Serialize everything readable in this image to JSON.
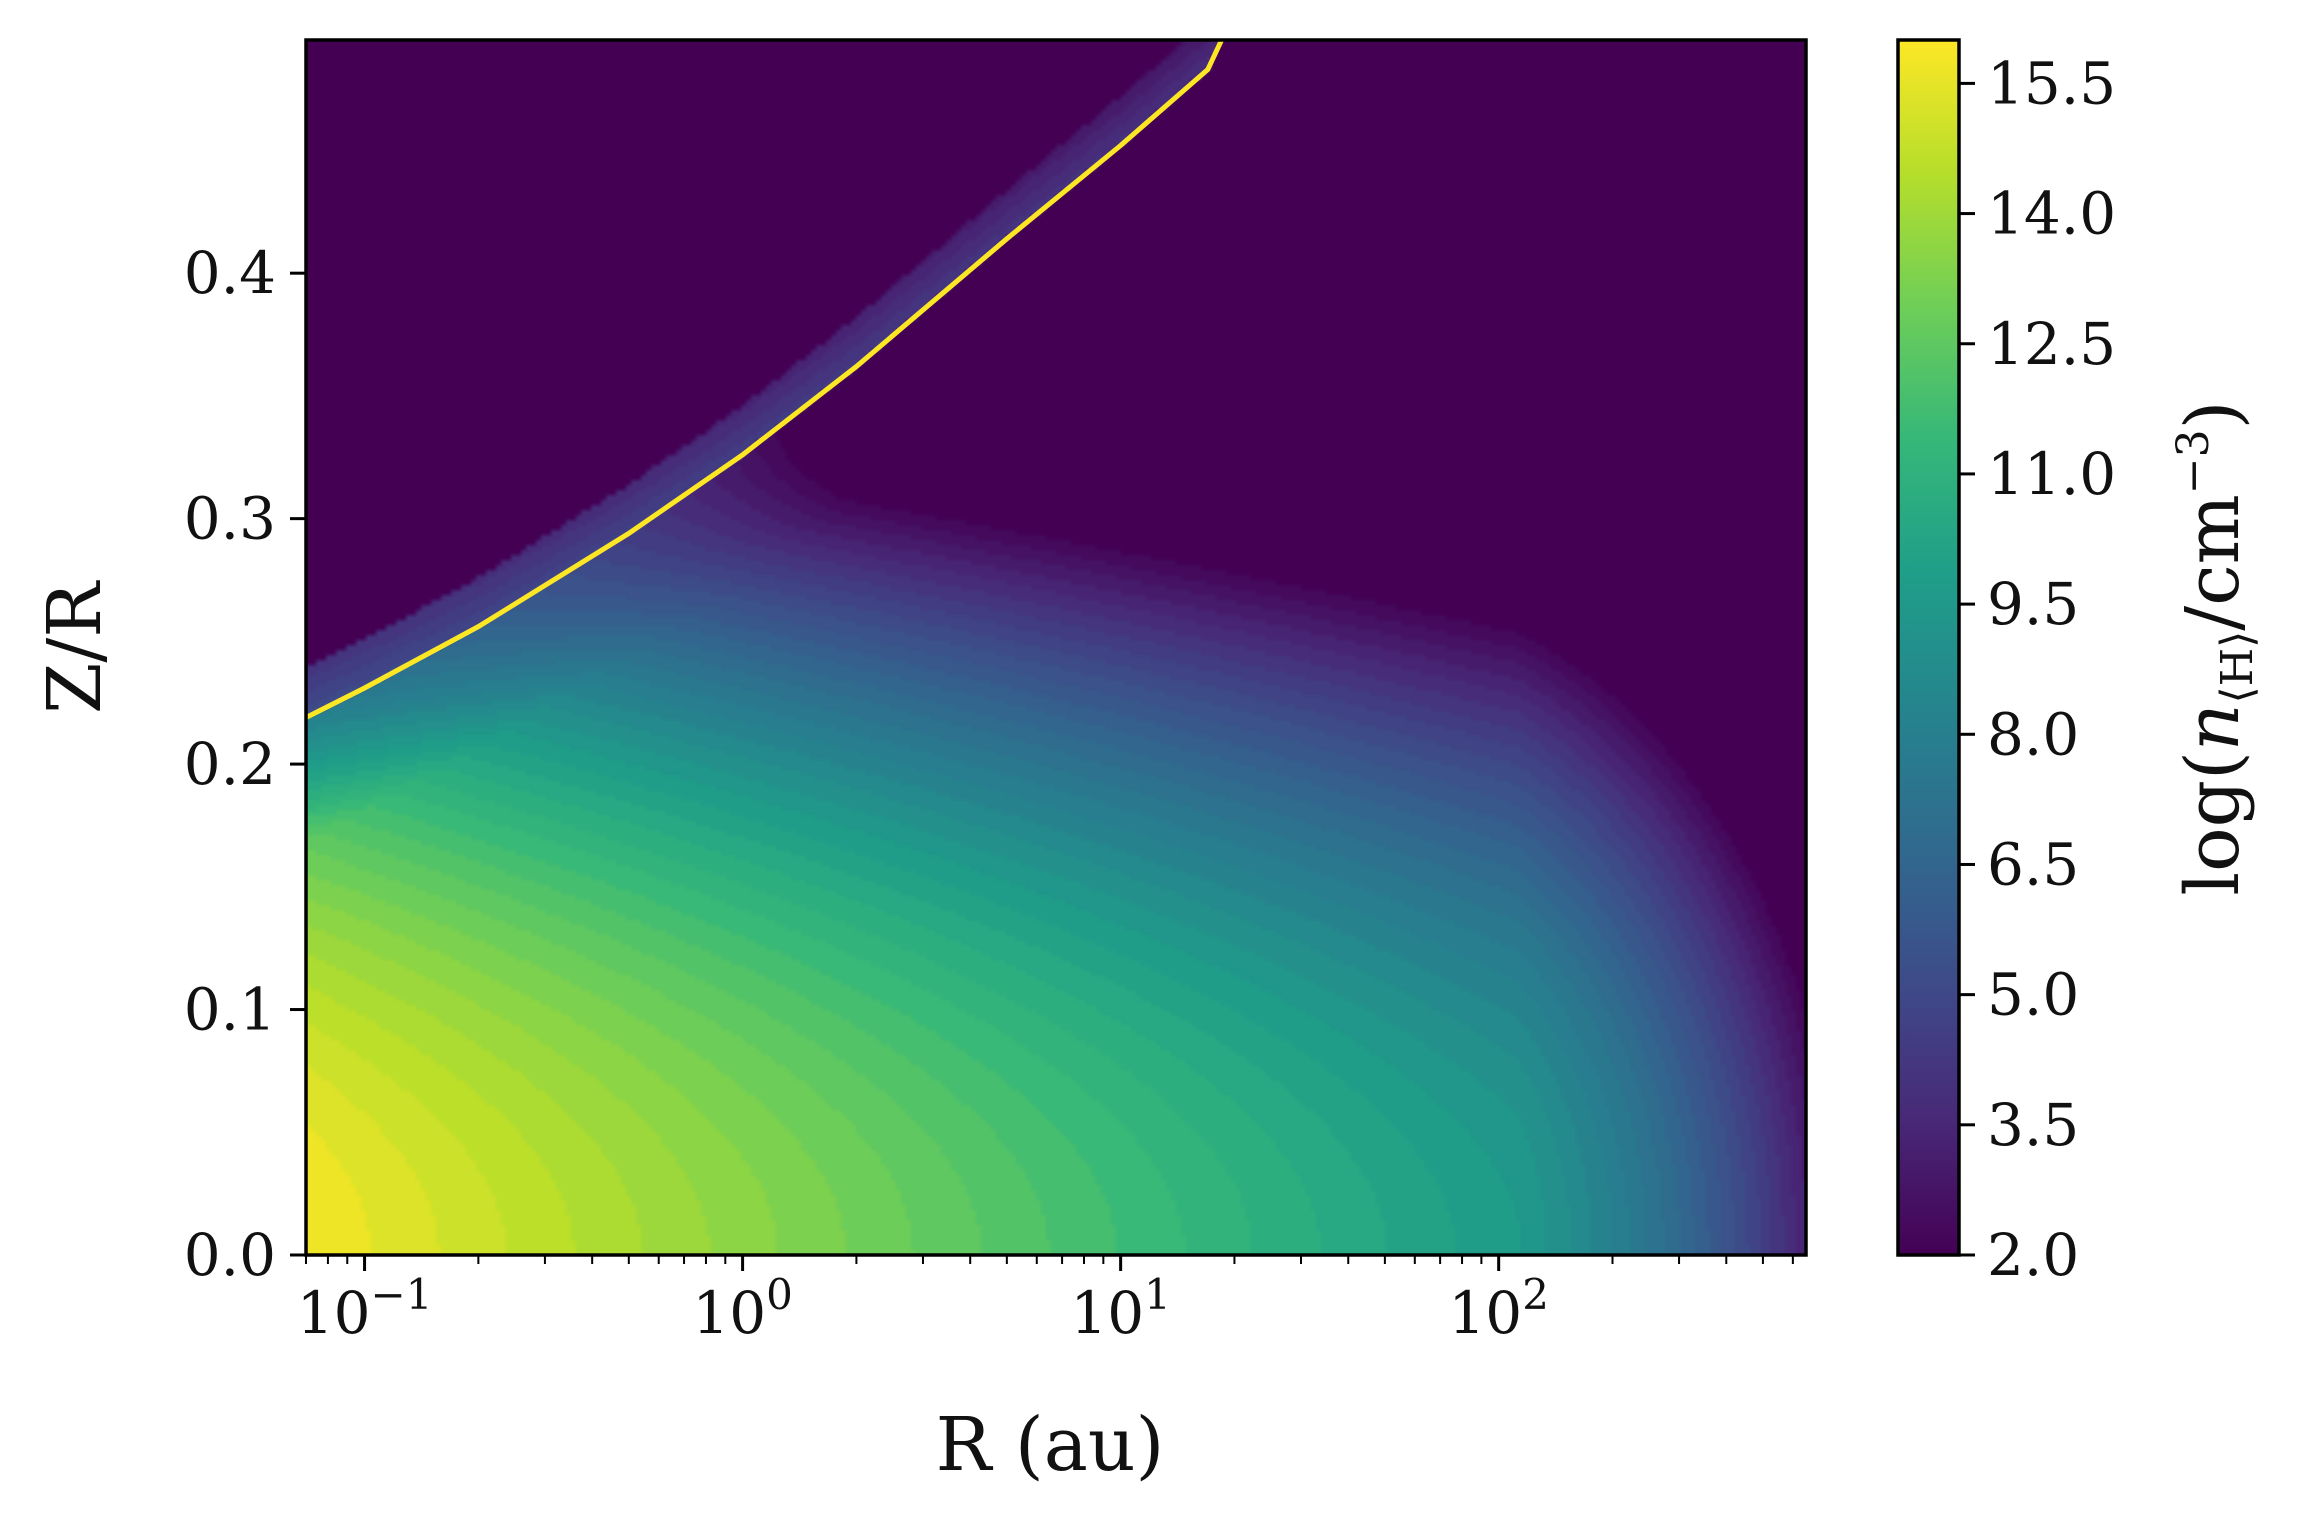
{
  "chart_data": {
    "type": "heatmap",
    "title": "",
    "xlabel": "R (au)",
    "ylabel": "Z/R",
    "x_scale": "log",
    "xlim": [
      0.07,
      650
    ],
    "ylim": [
      0.0,
      0.495
    ],
    "x_ticks": [
      {
        "value": 0.1,
        "base": "10",
        "exp": "−1"
      },
      {
        "value": 1,
        "base": "10",
        "exp": "0"
      },
      {
        "value": 10,
        "base": "10",
        "exp": "1"
      },
      {
        "value": 100,
        "base": "10",
        "exp": "2"
      }
    ],
    "y_ticks": [
      {
        "value": 0.0,
        "label": "0.0"
      },
      {
        "value": 0.1,
        "label": "0.1"
      },
      {
        "value": 0.2,
        "label": "0.2"
      },
      {
        "value": 0.3,
        "label": "0.3"
      },
      {
        "value": 0.4,
        "label": "0.4"
      }
    ],
    "z_range": [
      2.0,
      16.0
    ],
    "colormap": "viridis",
    "colorbar": {
      "label_prefix": "log(",
      "label_var": "n",
      "label_sub": "⟨H⟩",
      "label_units": "/cm",
      "label_sup": "−3",
      "label_suffix": ")",
      "ticks": [
        {
          "value": 2.0,
          "label": "2.0"
        },
        {
          "value": 3.5,
          "label": "3.5"
        },
        {
          "value": 5.0,
          "label": "5.0"
        },
        {
          "value": 6.5,
          "label": "6.5"
        },
        {
          "value": 8.0,
          "label": "8.0"
        },
        {
          "value": 9.5,
          "label": "9.5"
        },
        {
          "value": 11.0,
          "label": "11.0"
        },
        {
          "value": 12.5,
          "label": "12.5"
        },
        {
          "value": 14.0,
          "label": "14.0"
        },
        {
          "value": 15.5,
          "label": "15.5"
        }
      ]
    },
    "contour": {
      "color": "#fde725",
      "points": [
        [
          0.07,
          0.219
        ],
        [
          0.1,
          0.231
        ],
        [
          0.2,
          0.256
        ],
        [
          0.5,
          0.294
        ],
        [
          1,
          0.326
        ],
        [
          2,
          0.362
        ],
        [
          5,
          0.414
        ],
        [
          10,
          0.452
        ],
        [
          17,
          0.483
        ],
        [
          18.5,
          0.495
        ]
      ]
    }
  }
}
